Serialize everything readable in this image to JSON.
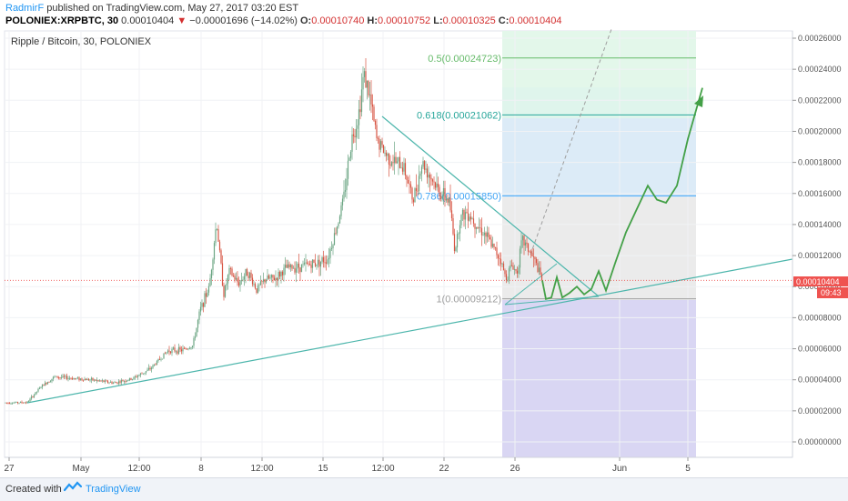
{
  "header": {
    "author": "RadmirF",
    "published_text": "published on TradingView.com, May 27, 2017 03:20 EST",
    "symbol": "POLONIEX:XRPBTC, 30",
    "last": "0.00010404",
    "change_arrow": "▼",
    "change": "−0.00001696 (−14.02%)",
    "o_label": "O:",
    "o_value": "0.00010740",
    "h_label": "H:",
    "h_value": "0.00010752",
    "l_label": "L:",
    "l_value": "0.00010325",
    "c_label": "C:",
    "c_value": "0.00010404"
  },
  "chart_data": {
    "type": "candlestick",
    "title": "Ripple / Bitcoin, 30, POLONIEX",
    "x_tick_labels": [
      "27",
      "May",
      "12:00",
      "8",
      "12:00",
      "15",
      "12:00",
      "22",
      "26",
      "Jun",
      "5"
    ],
    "y_tick_labels": [
      "0.00000000",
      "0.00002000",
      "0.00004000",
      "0.00006000",
      "0.00008000",
      "0.00010000",
      "0.00012000",
      "0.00014000",
      "0.00016000",
      "0.00018000",
      "0.00020000",
      "0.00022000",
      "0.00024000",
      "0.00026000"
    ],
    "ylim": [
      0,
      0.00026
    ],
    "price_path": [
      [
        0,
        2.52e-05
      ],
      [
        15,
        2.53e-05
      ],
      [
        30,
        2.55e-05
      ],
      [
        45,
        3.55e-05
      ],
      [
        60,
        4.2e-05
      ],
      [
        80,
        4.1e-05
      ],
      [
        100,
        4e-05
      ],
      [
        125,
        3.8e-05
      ],
      [
        145,
        4.05e-05
      ],
      [
        165,
        4.7e-05
      ],
      [
        185,
        5.9e-05
      ],
      [
        200,
        5.9e-05
      ],
      [
        212,
        6.2e-05
      ],
      [
        220,
        8.5e-05
      ],
      [
        230,
        0.0001
      ],
      [
        238,
        0.000142
      ],
      [
        246,
        9.5e-05
      ],
      [
        252,
        0.00011
      ],
      [
        262,
        0.000102
      ],
      [
        272,
        0.00011
      ],
      [
        282,
        9.8e-05
      ],
      [
        292,
        0.000105
      ],
      [
        302,
        0.000105
      ],
      [
        315,
        0.000112
      ],
      [
        330,
        0.000113
      ],
      [
        345,
        0.000115
      ],
      [
        360,
        0.000118
      ],
      [
        370,
        0.000138
      ],
      [
        378,
        0.000158
      ],
      [
        386,
        0.000194
      ],
      [
        394,
        0.00021
      ],
      [
        400,
        0.000238
      ],
      [
        407,
        0.00022
      ],
      [
        414,
        0.000195
      ],
      [
        424,
        0.000185
      ],
      [
        434,
        0.00018
      ],
      [
        444,
        0.000177
      ],
      [
        454,
        0.000155
      ],
      [
        464,
        0.00018
      ],
      [
        474,
        0.00017
      ],
      [
        484,
        0.00016
      ],
      [
        494,
        0.000155
      ],
      [
        500,
        0.000123
      ],
      [
        506,
        0.000145
      ],
      [
        514,
        0.000148
      ],
      [
        524,
        0.00014
      ],
      [
        534,
        0.000133
      ],
      [
        542,
        0.000125
      ],
      [
        550,
        0.000118
      ],
      [
        556,
        0.000105
      ],
      [
        562,
        0.000114
      ],
      [
        568,
        0.000109
      ],
      [
        574,
        0.00013
      ],
      [
        580,
        0.000125
      ],
      [
        588,
        0.000116
      ],
      [
        596,
        0.000104
      ]
    ],
    "last_price": 0.00010404,
    "last_price_label": "0.00010404",
    "countdown_label": "09:43",
    "fib_levels": [
      {
        "label": "0.5(0.00024723)",
        "value": 0.00024723,
        "color": "#66bb6a"
      },
      {
        "label": "0.618(0.00021062)",
        "value": 0.00021062,
        "color": "#26a69a"
      },
      {
        "label": "0.786(0.00015850)",
        "value": 0.0001585,
        "color": "#42a5f5"
      },
      {
        "label": "1(0.00009212)",
        "value": 9.212e-05,
        "color": "#9e9e9e"
      }
    ],
    "projection_path": [
      [
        596,
        0.000104
      ],
      [
        600,
        9.2e-05
      ],
      [
        606,
        9.3e-05
      ],
      [
        612,
        0.000106
      ],
      [
        618,
        9.3e-05
      ],
      [
        626,
        9.6e-05
      ],
      [
        634,
        0.0001
      ],
      [
        642,
        9.5e-05
      ],
      [
        650,
        9.85e-05
      ],
      [
        658,
        0.00011
      ],
      [
        666,
        9.75e-05
      ],
      [
        676,
        0.000115
      ],
      [
        688,
        0.000135
      ],
      [
        700,
        0.00015
      ],
      [
        712,
        0.000165
      ],
      [
        722,
        0.000156
      ],
      [
        732,
        0.000154
      ],
      [
        744,
        0.000165
      ],
      [
        756,
        0.000195
      ],
      [
        772,
        0.000228
      ]
    ]
  },
  "footer": {
    "created": "Created with",
    "brand": "TradingView"
  }
}
